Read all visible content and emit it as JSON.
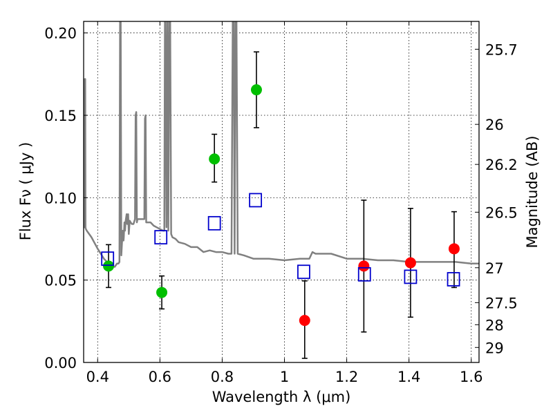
{
  "chart_data": {
    "type": "scatter",
    "title": "",
    "xlabel": "Wavelength  λ (μm)",
    "ylabel": "Flux  Fν  ( μJy )",
    "y2label": "Magnitude (AB)",
    "xlim": [
      0.355,
      1.625
    ],
    "ylim": [
      0.0,
      0.207
    ],
    "grid": true,
    "x_ticks": [
      0.4,
      0.6,
      0.8,
      1.0,
      1.2,
      1.4,
      1.6
    ],
    "x_tick_labels": [
      "0.4",
      "0.6",
      "0.8",
      "1",
      "1.2",
      "1.4",
      "1.6"
    ],
    "y_ticks": [
      0.0,
      0.05,
      0.1,
      0.15,
      0.2
    ],
    "y_tick_labels": [
      "0.00",
      "0.05",
      "0.10",
      "0.15",
      "0.20"
    ],
    "y2_ticks": [
      {
        "label": "25.7",
        "flux": 0.1901
      },
      {
        "label": "26",
        "flux": 0.1445
      },
      {
        "label": "26.2",
        "flux": 0.1202
      },
      {
        "label": "26.5",
        "flux": 0.0912
      },
      {
        "label": "27",
        "flux": 0.0575
      },
      {
        "label": "27.5",
        "flux": 0.0363
      },
      {
        "label": "28",
        "flux": 0.0229
      },
      {
        "label": "29",
        "flux": 0.0091
      }
    ],
    "series": [
      {
        "marker": "circle",
        "color": "#00bf00",
        "points": [
          {
            "x": 0.435,
            "y": 0.0585,
            "err_low": 0.0455,
            "err_high": 0.0715
          },
          {
            "x": 0.606,
            "y": 0.0425,
            "err_low": 0.0325,
            "err_high": 0.0525
          },
          {
            "x": 0.775,
            "y": 0.1235,
            "err_low": 0.1095,
            "err_high": 0.1385
          },
          {
            "x": 0.91,
            "y": 0.1655,
            "err_low": 0.1425,
            "err_high": 0.1885
          }
        ]
      },
      {
        "marker": "circle",
        "color": "#ff0000",
        "points": [
          {
            "x": 1.065,
            "y": 0.0255,
            "err_low": 0.0025,
            "err_high": 0.0495
          },
          {
            "x": 1.255,
            "y": 0.0585,
            "err_low": 0.0185,
            "err_high": 0.0985
          },
          {
            "x": 1.405,
            "y": 0.0605,
            "err_low": 0.0275,
            "err_high": 0.0935
          },
          {
            "x": 1.545,
            "y": 0.069,
            "err_low": 0.0455,
            "err_high": 0.0915
          }
        ]
      },
      {
        "marker": "open-square",
        "color": "#0000cc",
        "points": [
          {
            "x": 0.432,
            "y": 0.063
          },
          {
            "x": 0.603,
            "y": 0.076
          },
          {
            "x": 0.775,
            "y": 0.0845
          },
          {
            "x": 0.907,
            "y": 0.0985
          },
          {
            "x": 1.062,
            "y": 0.055
          },
          {
            "x": 1.257,
            "y": 0.0535
          },
          {
            "x": 1.405,
            "y": 0.052
          },
          {
            "x": 1.543,
            "y": 0.0505
          }
        ]
      }
    ],
    "model_spectrum": {
      "color": "#808080",
      "x": [
        0.355,
        0.358,
        0.359,
        0.36,
        0.361,
        0.362,
        0.365,
        0.38,
        0.4,
        0.42,
        0.44,
        0.455,
        0.462,
        0.467,
        0.47,
        0.472,
        0.474,
        0.476,
        0.479,
        0.481,
        0.483,
        0.484,
        0.486,
        0.488,
        0.49,
        0.493,
        0.495,
        0.498,
        0.5,
        0.503,
        0.506,
        0.51,
        0.515,
        0.52,
        0.522,
        0.524,
        0.526,
        0.528,
        0.535,
        0.55,
        0.552,
        0.554,
        0.556,
        0.558,
        0.57,
        0.58,
        0.59,
        0.6,
        0.61,
        0.614,
        0.616,
        0.618,
        0.621,
        0.624,
        0.627,
        0.63,
        0.633,
        0.636,
        0.64,
        0.65,
        0.66,
        0.68,
        0.7,
        0.72,
        0.74,
        0.76,
        0.78,
        0.8,
        0.82,
        0.83,
        0.834,
        0.837,
        0.84,
        0.843,
        0.846,
        0.85,
        0.87,
        0.9,
        0.95,
        1.0,
        1.05,
        1.08,
        1.09,
        1.1,
        1.15,
        1.2,
        1.25,
        1.3,
        1.35,
        1.4,
        1.45,
        1.5,
        1.55,
        1.6,
        1.625
      ],
      "y": [
        0.082,
        0.082,
        0.172,
        0.172,
        0.082,
        0.081,
        0.08,
        0.076,
        0.069,
        0.063,
        0.059,
        0.058,
        0.06,
        0.06,
        0.061,
        0.207,
        0.207,
        0.065,
        0.075,
        0.08,
        0.074,
        0.076,
        0.085,
        0.08,
        0.086,
        0.09,
        0.084,
        0.09,
        0.078,
        0.086,
        0.085,
        0.084,
        0.084,
        0.087,
        0.15,
        0.152,
        0.085,
        0.087,
        0.087,
        0.087,
        0.148,
        0.15,
        0.085,
        0.085,
        0.085,
        0.083,
        0.082,
        0.081,
        0.08,
        0.08,
        0.207,
        0.207,
        0.082,
        0.207,
        0.08,
        0.207,
        0.207,
        0.078,
        0.076,
        0.075,
        0.073,
        0.072,
        0.07,
        0.07,
        0.067,
        0.068,
        0.067,
        0.067,
        0.066,
        0.066,
        0.207,
        0.207,
        0.066,
        0.207,
        0.207,
        0.066,
        0.065,
        0.063,
        0.063,
        0.062,
        0.063,
        0.063,
        0.067,
        0.066,
        0.066,
        0.063,
        0.063,
        0.062,
        0.062,
        0.061,
        0.061,
        0.061,
        0.061,
        0.06,
        0.06
      ]
    }
  }
}
